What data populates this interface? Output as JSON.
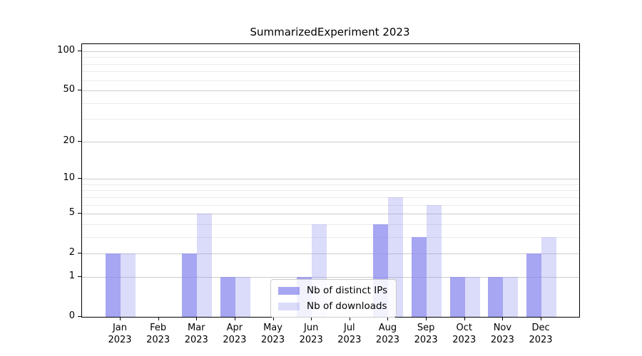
{
  "title": "SummarizedExperiment 2023",
  "chart_data": {
    "type": "bar",
    "title": "SummarizedExperiment 2023",
    "categories": [
      "Jan",
      "Feb",
      "Mar",
      "Apr",
      "May",
      "Jun",
      "Jul",
      "Aug",
      "Sep",
      "Oct",
      "Nov",
      "Dec"
    ],
    "category_year": "2023",
    "series": [
      {
        "name": "Nb of distinct IPs",
        "color": "#8888ee",
        "opacity": 0.75,
        "values": [
          2,
          0,
          2,
          1,
          0,
          1,
          0,
          4,
          3,
          1,
          1,
          2
        ]
      },
      {
        "name": "Nb of downloads",
        "color": "#8888ee",
        "opacity": 0.3,
        "values": [
          2,
          0,
          5,
          1,
          0,
          4,
          0,
          7,
          6,
          1,
          1,
          3
        ]
      }
    ],
    "yscale": "log1p",
    "ylim": [
      0,
      113
    ],
    "yticks": [
      0,
      1,
      2,
      5,
      10,
      20,
      50,
      100
    ],
    "minor_gridlines": [
      3,
      4,
      6,
      7,
      8,
      9,
      30,
      40,
      60,
      70,
      80,
      90
    ],
    "grid": true,
    "legend_position": "lower center",
    "xlabel": "",
    "ylabel": ""
  },
  "legend": {
    "items": [
      {
        "label": "Nb of distinct IPs"
      },
      {
        "label": "Nb of downloads"
      }
    ]
  },
  "colors": {
    "bar_base": "#8888ee",
    "grid_major": "#cccccc",
    "grid_minor": "#ebebeb",
    "axis": "#000000",
    "background": "#ffffff"
  }
}
